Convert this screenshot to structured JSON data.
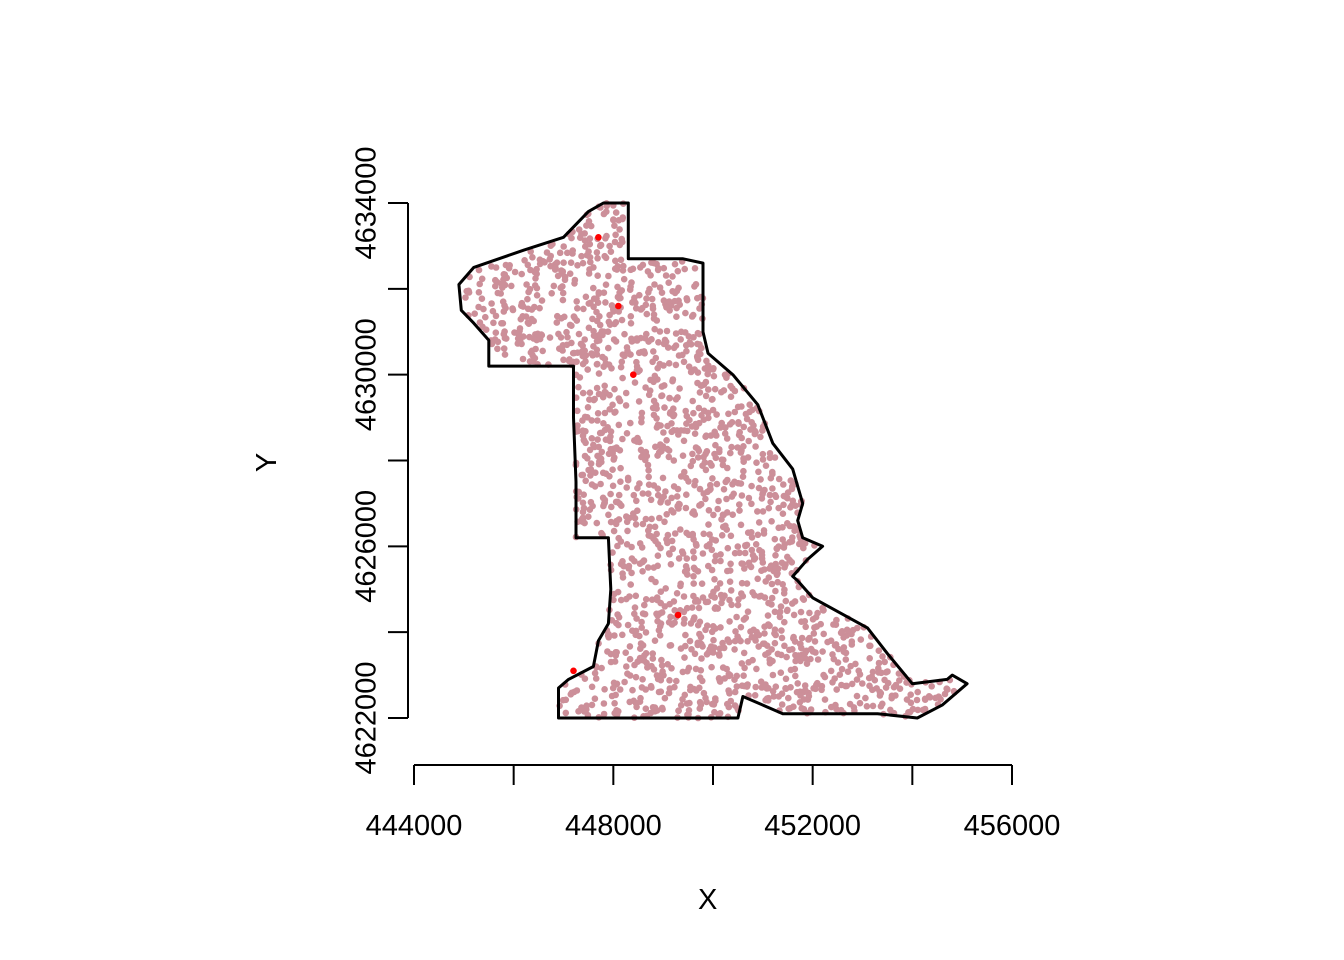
{
  "chart_data": {
    "type": "scatter",
    "title": "",
    "xlabel": "X",
    "ylabel": "Y",
    "xlim": [
      444000,
      456000
    ],
    "ylim": [
      4622000,
      4634000
    ],
    "x_ticks": [
      444000,
      446000,
      448000,
      450000,
      452000,
      454000,
      456000
    ],
    "x_tick_labels": [
      "444000",
      "",
      "448000",
      "",
      "452000",
      "",
      "456000"
    ],
    "y_ticks": [
      4622000,
      4624000,
      4626000,
      4628000,
      4630000,
      4632000,
      4634000
    ],
    "y_tick_labels": [
      "4622000",
      "",
      "4626000",
      "",
      "4630000",
      "",
      "4634000"
    ],
    "grid": false,
    "legend": "none",
    "colors": {
      "points": "#cc8f99",
      "highlight_points": "#ff0000",
      "boundary": "#000000"
    },
    "boundary": {
      "x": [
        448300,
        448300,
        447800,
        447500,
        447000,
        446200,
        445200,
        444900,
        444950,
        445200,
        445500,
        445500,
        447200,
        447200,
        447250,
        447250,
        447900,
        447950,
        447900,
        447700,
        447600,
        447100,
        446900,
        446900,
        450500,
        450600,
        451400,
        452600,
        453300,
        454100,
        454600,
        455100,
        454800,
        454700,
        454000,
        453500,
        453100,
        452000,
        451700,
        451600,
        451900,
        452200,
        451800,
        451700,
        451800,
        451600,
        451200,
        450900,
        450400,
        449900,
        449800,
        449800,
        449400
      ],
      "y": [
        4632700,
        4634000,
        4634000,
        4633800,
        4633200,
        4632900,
        4632500,
        4632100,
        4631500,
        4631200,
        4630800,
        4630200,
        4630200,
        4629000,
        4627500,
        4626200,
        4626200,
        4625000,
        4624200,
        4623800,
        4623200,
        4622900,
        4622700,
        4622000,
        4622000,
        4622500,
        4622100,
        4622100,
        4622100,
        4622000,
        4622300,
        4622800,
        4623000,
        4622900,
        4622800,
        4623500,
        4624100,
        4624800,
        4625200,
        4625300,
        4625700,
        4626000,
        4626200,
        4626600,
        4627000,
        4627800,
        4628400,
        4629300,
        4630000,
        4630500,
        4631000,
        4632600,
        4632700
      ]
    },
    "series": [
      {
        "color": "#cc8f99",
        "note": "approximately 1800 points uniformly scattered within the boundary polygon",
        "count_estimate": 1800
      },
      {
        "color": "#ff0000",
        "x": [
          447700,
          448100,
          448400,
          449300,
          447200
        ],
        "y": [
          4633200,
          4631600,
          4630000,
          4624400,
          4623100
        ]
      }
    ]
  }
}
